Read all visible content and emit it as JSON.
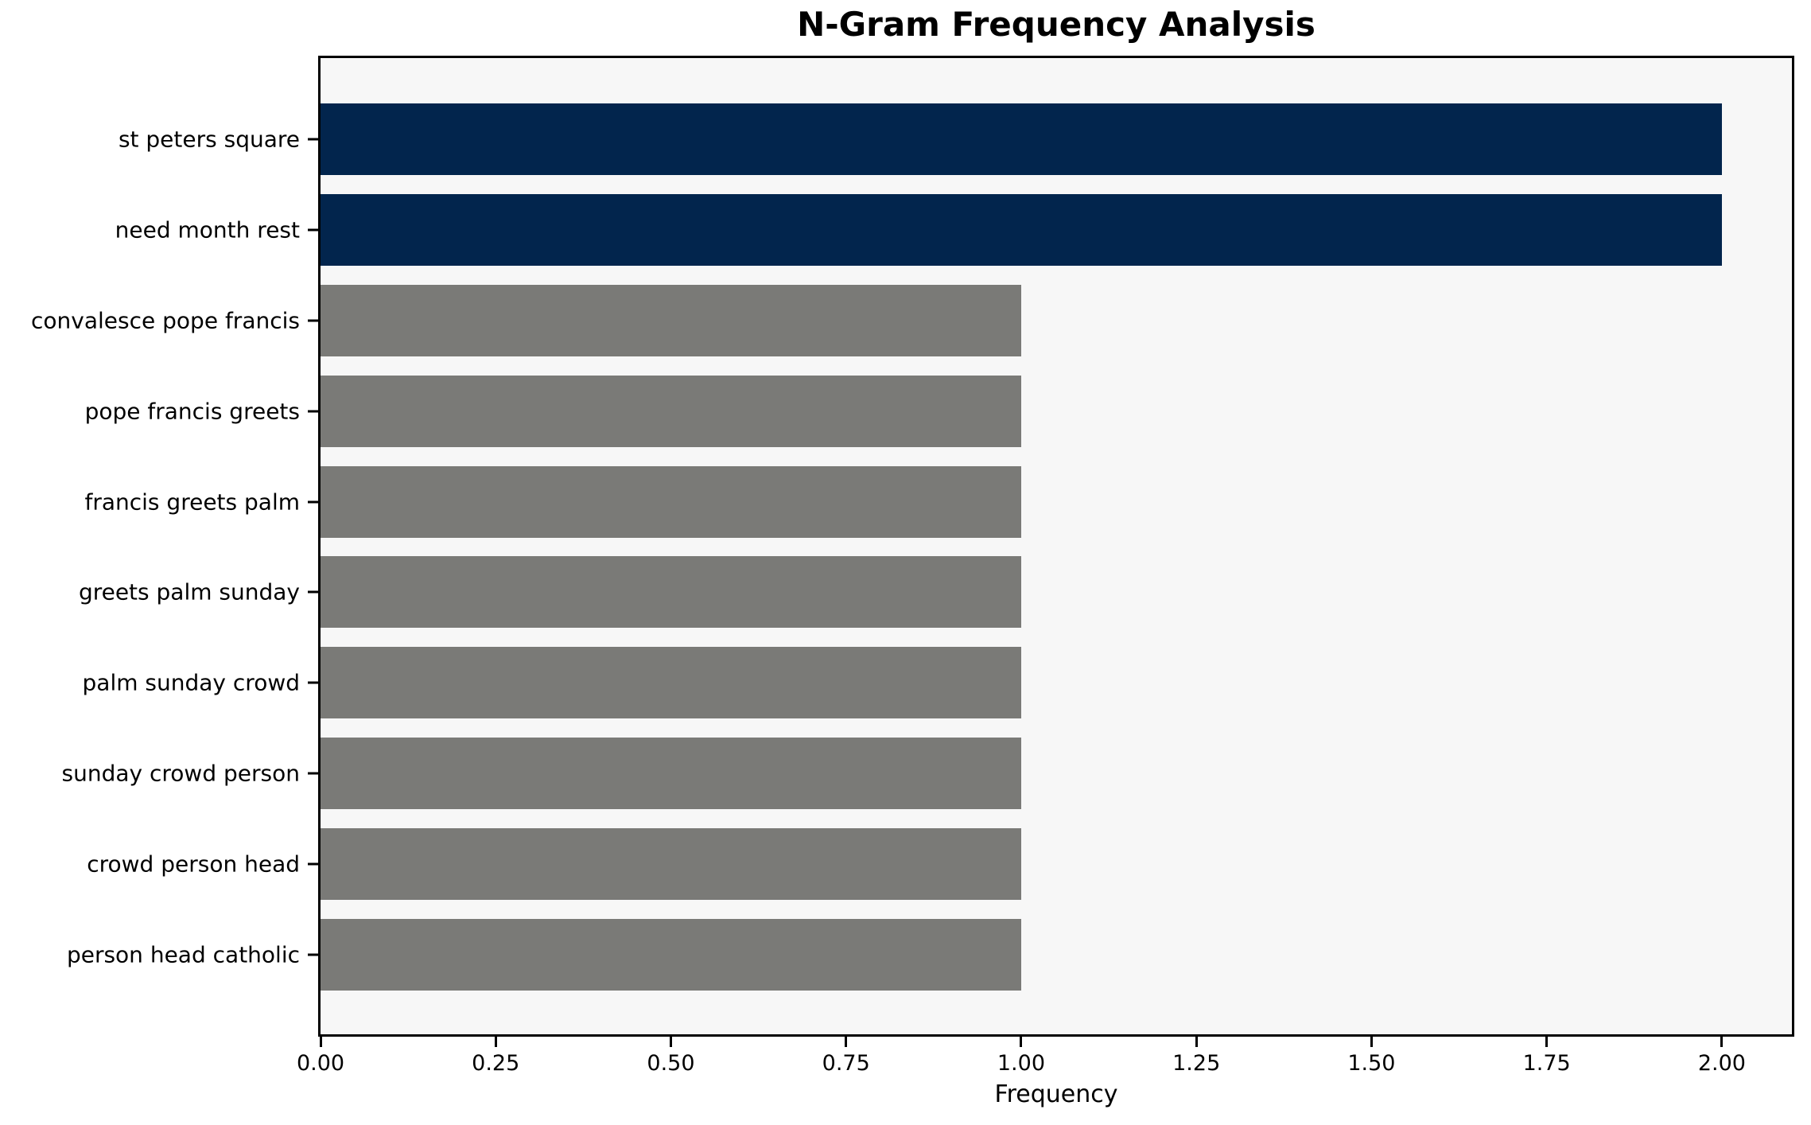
{
  "chart_data": {
    "type": "bar",
    "orientation": "horizontal",
    "title": "N-Gram Frequency Analysis",
    "xlabel": "Frequency",
    "ylabel": "",
    "categories": [
      "st peters square",
      "need month rest",
      "convalesce pope francis",
      "pope francis greets",
      "francis greets palm",
      "greets palm sunday",
      "palm sunday crowd",
      "sunday crowd person",
      "crowd person head",
      "person head catholic"
    ],
    "values": [
      2,
      2,
      1,
      1,
      1,
      1,
      1,
      1,
      1,
      1
    ],
    "xlim": [
      0,
      2.1
    ],
    "xtick_values": [
      0,
      0.25,
      0.5,
      0.75,
      1.0,
      1.25,
      1.5,
      1.75,
      2.0
    ],
    "xtick_labels": [
      "0.00",
      "0.25",
      "0.50",
      "0.75",
      "1.00",
      "1.25",
      "1.50",
      "1.75",
      "2.00"
    ],
    "grid": false,
    "legend": false,
    "colors": {
      "highlight_bar": "#02254d",
      "regular_bar": "#7a7a77",
      "bar_colors": [
        "#02254d",
        "#02254d",
        "#7a7a77",
        "#7a7a77",
        "#7a7a77",
        "#7a7a77",
        "#7a7a77",
        "#7a7a77",
        "#7a7a77",
        "#7a7a77"
      ],
      "plot_background": "#f7f7f7",
      "figure_background": "#ffffff",
      "axis": "#000000",
      "text": "#000000"
    }
  }
}
